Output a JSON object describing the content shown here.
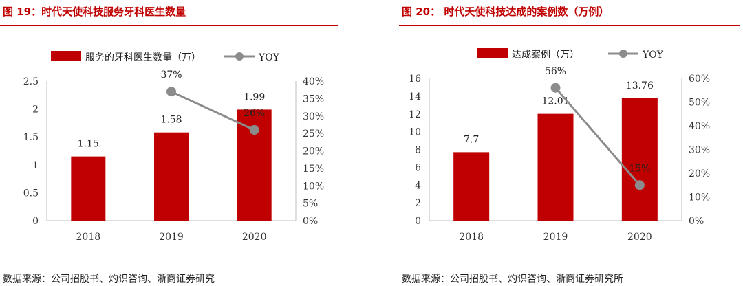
{
  "left": {
    "title": "图 19：时代天使科技服务牙科医生数量",
    "source": "数据来源：公司招股书、灼识咨询、浙商证券研究",
    "colors": {
      "rule": "#c00000",
      "bar": "#c00000",
      "line": "#8c8c8c"
    }
  },
  "right": {
    "title": "图 20： 时代天使科技达成的案例数（万例）",
    "source": "数据来源：公司招股书、灼识咨询、浙商证券研究所",
    "colors": {
      "rule": "#c00000",
      "bar": "#c00000",
      "line": "#8c8c8c"
    }
  },
  "chart_data": [
    {
      "type": "bar",
      "categories": [
        "2018",
        "2019",
        "2020"
      ],
      "series": [
        {
          "name": "服务的牙科医生数量（万）",
          "type": "bar",
          "axis": "left",
          "values": [
            1.15,
            1.58,
            1.99
          ],
          "labels": [
            "1.15",
            "1.58",
            "1.99"
          ]
        },
        {
          "name": "YOY",
          "type": "line",
          "axis": "right",
          "values": [
            null,
            37,
            26
          ],
          "labels": [
            "",
            "37%",
            "26%"
          ]
        }
      ],
      "ylim": [
        0,
        2.5
      ],
      "yticks": [
        "0",
        "0.5",
        "1",
        "1.5",
        "2",
        "2.5"
      ],
      "y2lim": [
        0,
        40
      ],
      "y2ticks": [
        "0%",
        "5%",
        "10%",
        "15%",
        "20%",
        "25%",
        "30%",
        "35%",
        "40%"
      ],
      "legend": "top",
      "grid": false
    },
    {
      "type": "bar",
      "categories": [
        "2018",
        "2019",
        "2020"
      ],
      "series": [
        {
          "name": "达成案例（万）",
          "type": "bar",
          "axis": "left",
          "values": [
            7.7,
            12.01,
            13.76
          ],
          "labels": [
            "7.7",
            "12.01",
            "13.76"
          ]
        },
        {
          "name": "YOY",
          "type": "line",
          "axis": "right",
          "values": [
            null,
            56,
            15
          ],
          "labels": [
            "",
            "56%",
            "15%"
          ]
        }
      ],
      "ylim": [
        0,
        16
      ],
      "yticks": [
        "0",
        "2",
        "4",
        "6",
        "8",
        "10",
        "12",
        "14",
        "16"
      ],
      "y2lim": [
        0,
        60
      ],
      "y2ticks": [
        "0%",
        "10%",
        "20%",
        "30%",
        "40%",
        "50%",
        "60%"
      ],
      "legend": "top",
      "grid": false
    }
  ]
}
